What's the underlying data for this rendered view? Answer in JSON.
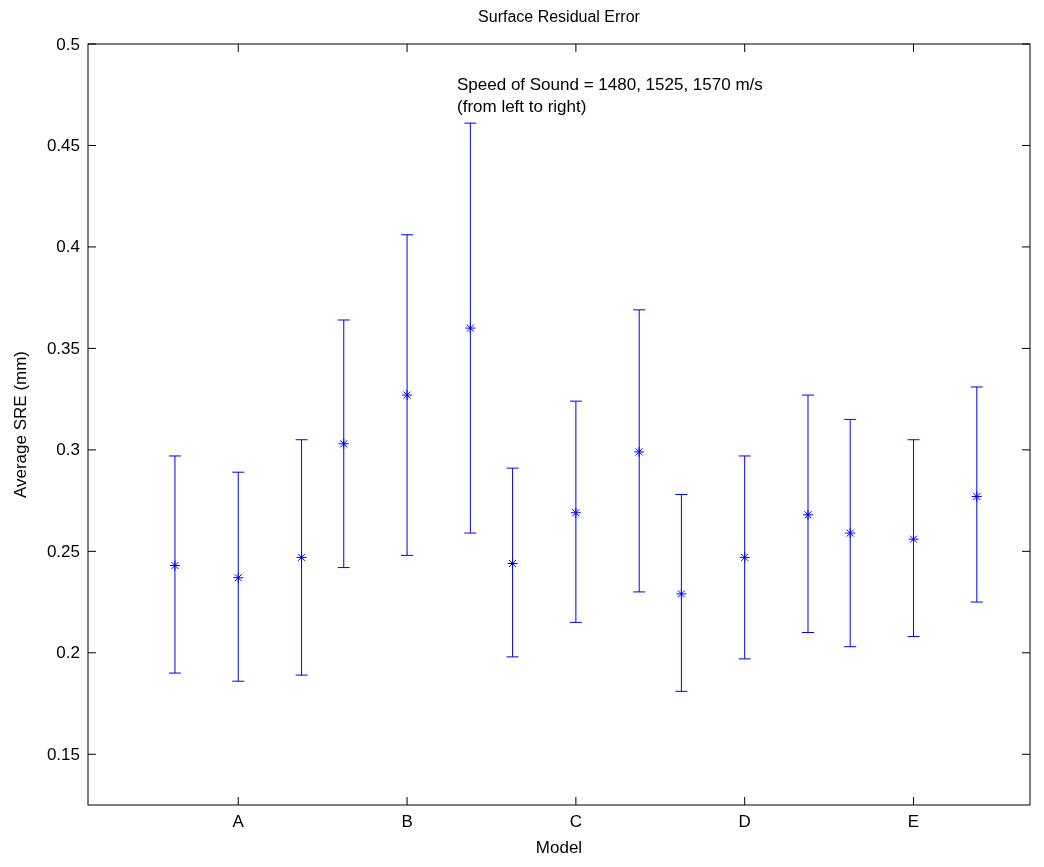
{
  "chart_data": {
    "type": "scatter",
    "title": "Surface Residual Error",
    "xlabel": "Model",
    "ylabel": "Average SRE (mm)",
    "annotations": [
      "Speed of Sound = 1480, 1525, 1570 m/s\n(from left to right)"
    ],
    "categories": [
      "A",
      "B",
      "C",
      "D",
      "E"
    ],
    "ylim": [
      0.125,
      0.5
    ],
    "yticks": [
      0.15,
      0.2,
      0.25,
      0.3,
      0.35,
      0.4,
      0.45,
      0.5
    ],
    "marker": "cross",
    "grid": false,
    "series": [
      {
        "color": "#0000ff",
        "values": [
          0.243,
          0.303,
          0.244,
          0.229,
          0.259
        ],
        "errors": [
          [
            0.19,
            0.297
          ],
          [
            0.242,
            0.364
          ],
          [
            0.198,
            0.291
          ],
          [
            0.181,
            0.278
          ],
          [
            0.203,
            0.315
          ]
        ]
      },
      {
        "color": "#0000ff",
        "values": [
          0.237,
          0.327,
          0.269,
          0.247,
          0.256
        ],
        "errors": [
          [
            0.186,
            0.289
          ],
          [
            0.248,
            0.406
          ],
          [
            0.215,
            0.324
          ],
          [
            0.197,
            0.297
          ],
          [
            0.208,
            0.305
          ]
        ]
      },
      {
        "color": "#0000ff",
        "values": [
          0.247,
          0.36,
          0.299,
          0.268,
          0.277
        ],
        "errors": [
          [
            0.189,
            0.305
          ],
          [
            0.259,
            0.461
          ],
          [
            0.23,
            0.369
          ],
          [
            0.21,
            0.327
          ],
          [
            0.225,
            0.331
          ]
        ]
      }
    ]
  }
}
